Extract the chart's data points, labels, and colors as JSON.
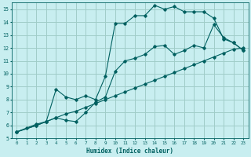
{
  "xlabel": "Humidex (Indice chaleur)",
  "background_color": "#c8eef0",
  "grid_color": "#a0ccc8",
  "line_color": "#006060",
  "xlim": [
    -0.5,
    23.5
  ],
  "ylim": [
    5,
    15.5
  ],
  "xticks": [
    0,
    1,
    2,
    3,
    4,
    5,
    6,
    7,
    8,
    9,
    10,
    11,
    12,
    13,
    14,
    15,
    16,
    17,
    18,
    19,
    20,
    21,
    22,
    23
  ],
  "yticks": [
    5,
    6,
    7,
    8,
    9,
    10,
    11,
    12,
    13,
    14,
    15
  ],
  "series1_x": [
    0,
    1,
    2,
    3,
    4,
    5,
    6,
    7,
    8,
    9,
    10,
    11,
    12,
    13,
    14,
    15,
    16,
    17,
    18,
    19,
    20,
    21,
    22,
    23
  ],
  "series1_y": [
    5.5,
    5.8,
    6.1,
    6.3,
    6.6,
    6.9,
    7.1,
    7.4,
    7.7,
    8.0,
    8.3,
    8.6,
    8.9,
    9.2,
    9.5,
    9.8,
    10.1,
    10.4,
    10.7,
    11.0,
    11.3,
    11.6,
    11.9,
    12.0
  ],
  "series2_x": [
    0,
    2,
    3,
    4,
    5,
    6,
    7,
    8,
    9,
    10,
    11,
    12,
    13,
    14,
    15,
    16,
    17,
    18,
    19,
    20,
    21,
    22,
    23
  ],
  "series2_y": [
    5.5,
    6.0,
    6.3,
    8.8,
    8.2,
    8.0,
    8.3,
    8.0,
    9.8,
    13.9,
    13.9,
    14.5,
    14.5,
    15.3,
    15.0,
    15.2,
    14.8,
    14.8,
    14.8,
    14.3,
    12.7,
    12.4,
    11.8
  ],
  "series3_x": [
    0,
    2,
    3,
    4,
    5,
    6,
    7,
    8,
    9,
    10,
    11,
    12,
    13,
    14,
    15,
    16,
    17,
    18,
    19,
    20,
    21,
    22,
    23
  ],
  "series3_y": [
    5.5,
    6.0,
    6.3,
    6.6,
    6.4,
    6.3,
    7.0,
    7.8,
    8.2,
    10.2,
    11.0,
    11.2,
    11.5,
    12.1,
    12.2,
    11.5,
    11.8,
    12.2,
    12.0,
    13.8,
    12.8,
    12.4,
    11.8
  ]
}
